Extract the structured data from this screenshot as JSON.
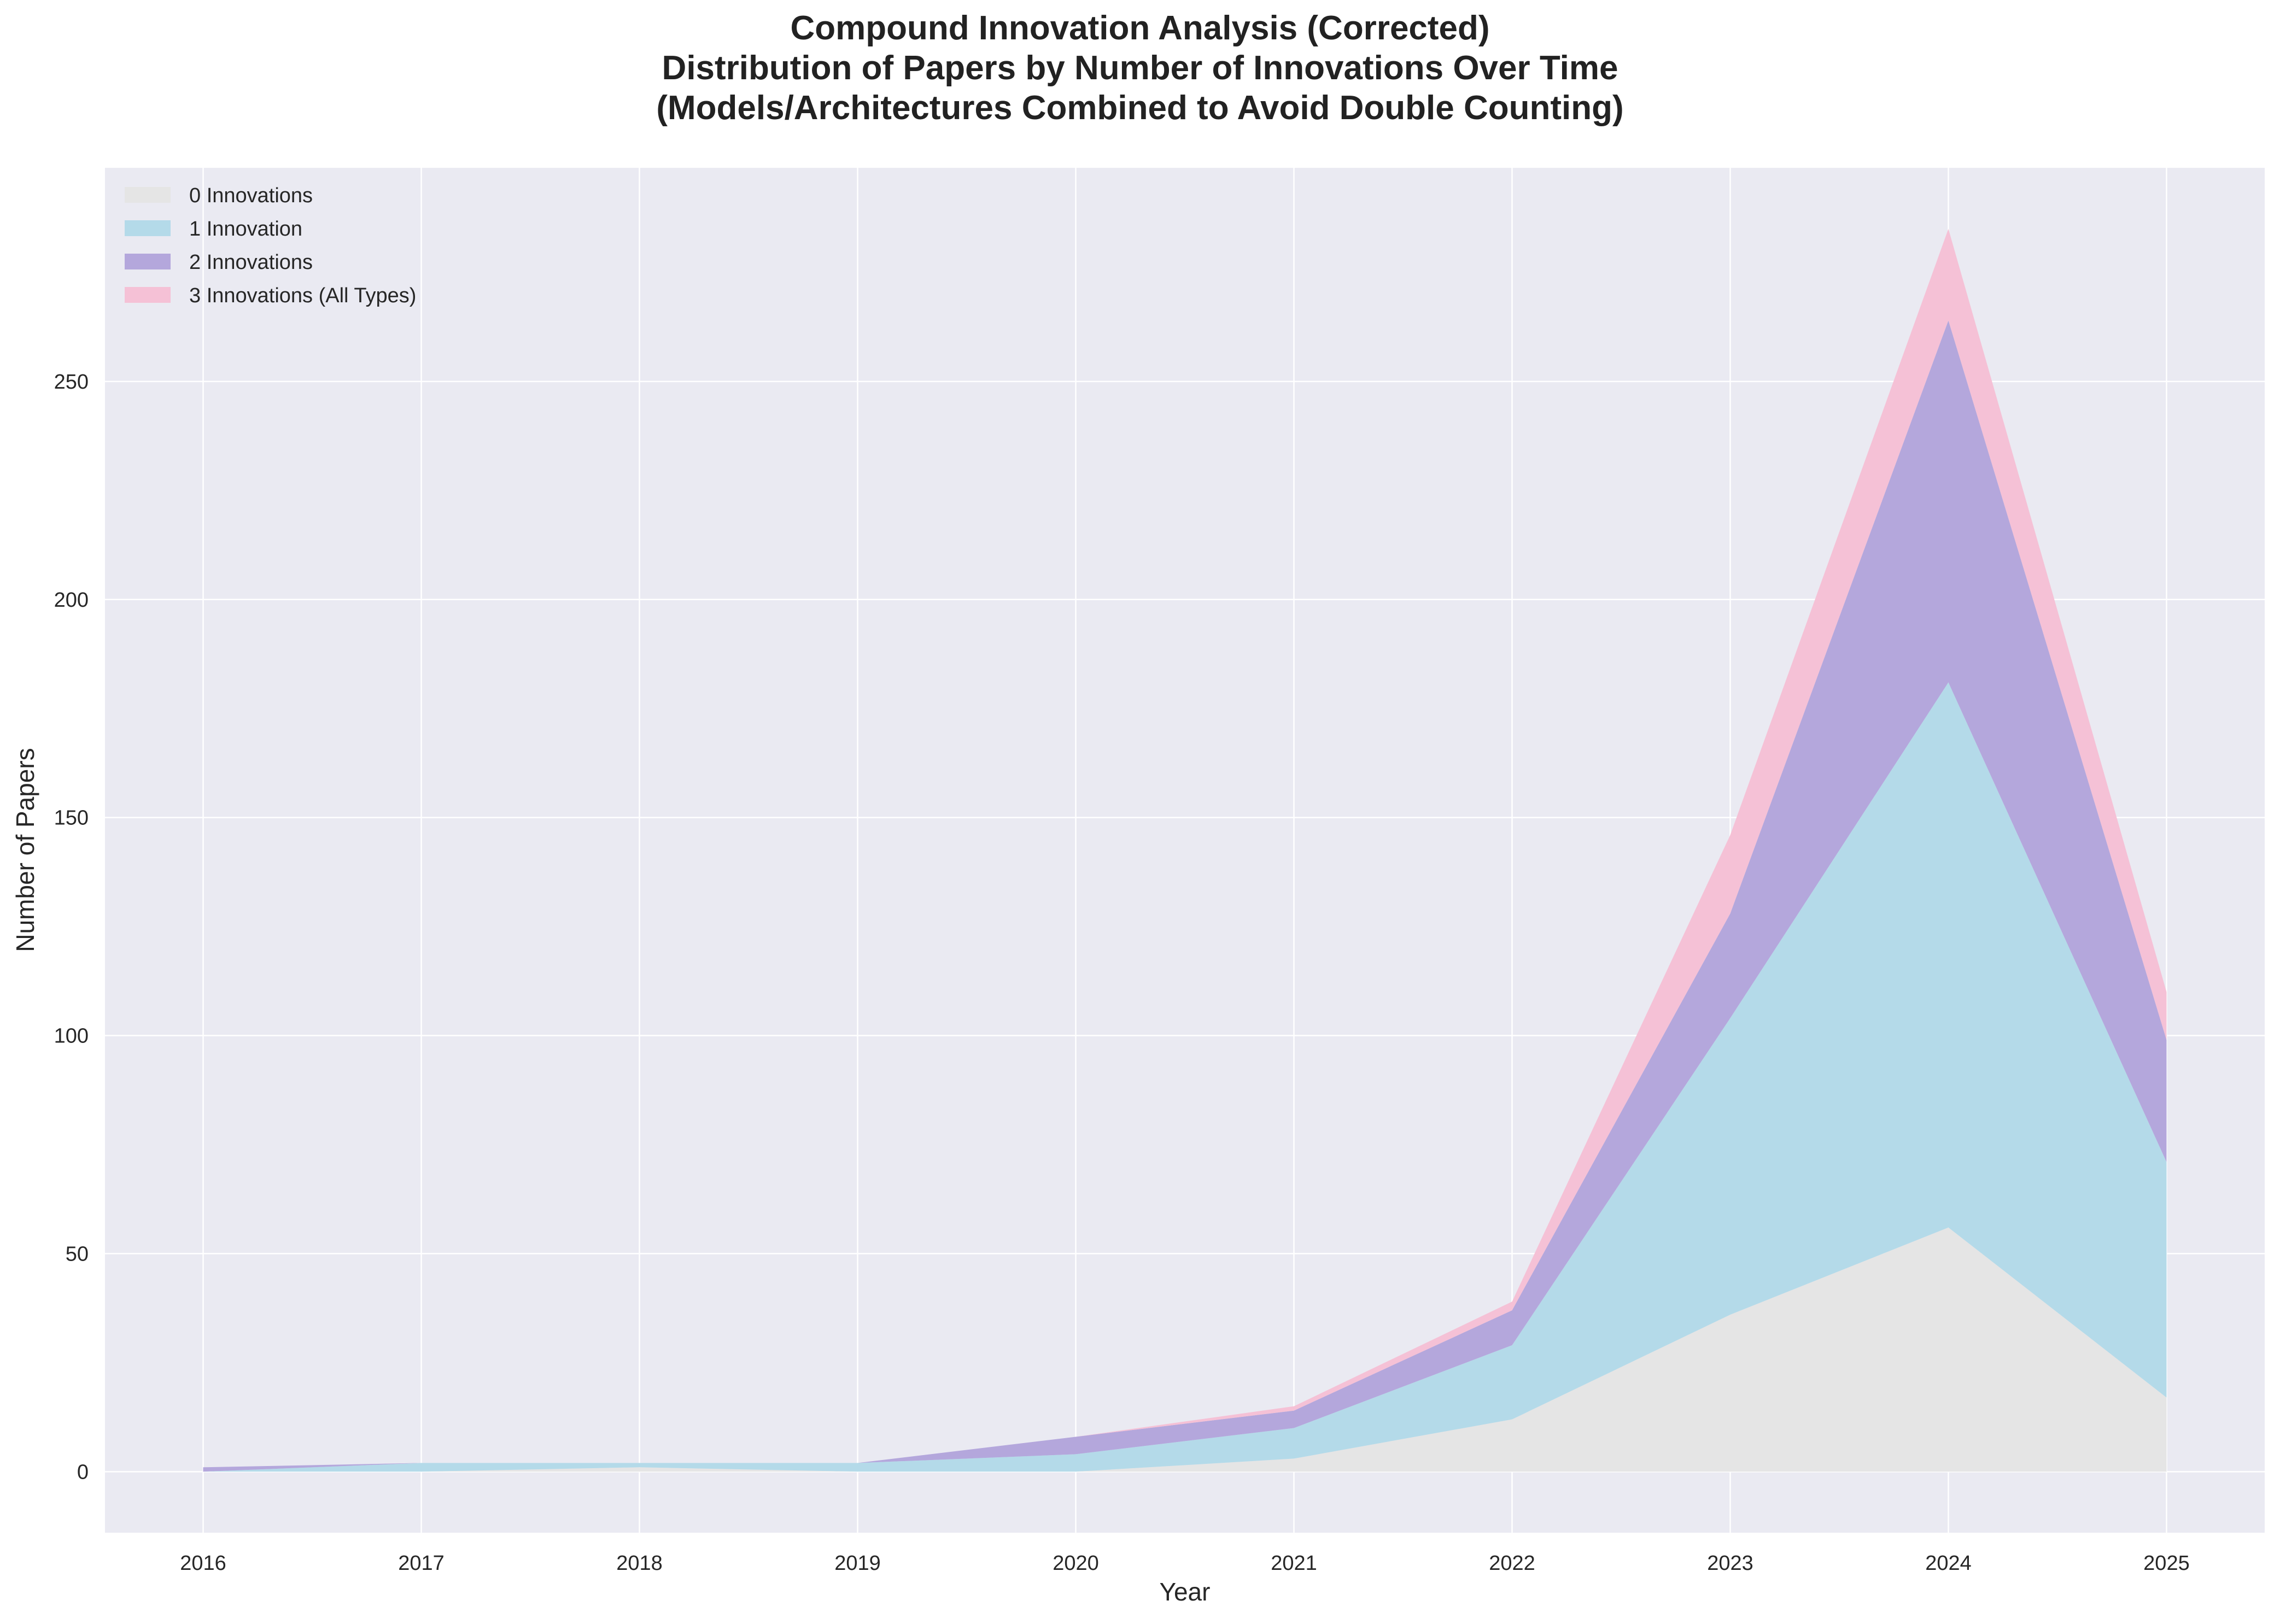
{
  "chart_data": {
    "type": "area",
    "stacked": true,
    "title": [
      "Compound Innovation Analysis (Corrected)",
      "Distribution of Papers by Number of Innovations Over Time",
      "(Models/Architectures Combined to Avoid Double Counting)"
    ],
    "xlabel": "Year",
    "ylabel": "Number of Papers",
    "x": [
      2016,
      2017,
      2018,
      2019,
      2020,
      2021,
      2022,
      2023,
      2024,
      2025
    ],
    "x_ticks": [
      "2016",
      "2017",
      "2018",
      "2019",
      "2020",
      "2021",
      "2022",
      "2023",
      "2024",
      "2025"
    ],
    "y_ticks": [
      "0",
      "50",
      "100",
      "150",
      "200",
      "250"
    ],
    "y_tick_values": [
      0,
      50,
      100,
      150,
      200,
      250
    ],
    "xlim": [
      2015.55,
      2025.45
    ],
    "ylim": [
      -14,
      299
    ],
    "grid": true,
    "legend_position": "upper-left",
    "series": [
      {
        "name": "0 Innovations",
        "color": "#e5e5e5",
        "values": [
          0,
          0,
          1,
          0,
          0,
          3,
          12,
          36,
          56,
          17
        ]
      },
      {
        "name": "1 Innovation",
        "color": "#b4dae9",
        "values": [
          0,
          2,
          1,
          2,
          4,
          7,
          17,
          68,
          125,
          54
        ]
      },
      {
        "name": "2 Innovations",
        "color": "#b4a7dc",
        "values": [
          1,
          0,
          0,
          0,
          4,
          4,
          8,
          24,
          83,
          28
        ]
      },
      {
        "name": "3 Innovations (All Types)",
        "color": "#f5c1d6",
        "values": [
          0,
          0,
          0,
          0,
          0,
          1,
          2,
          18,
          21,
          11
        ]
      }
    ]
  }
}
